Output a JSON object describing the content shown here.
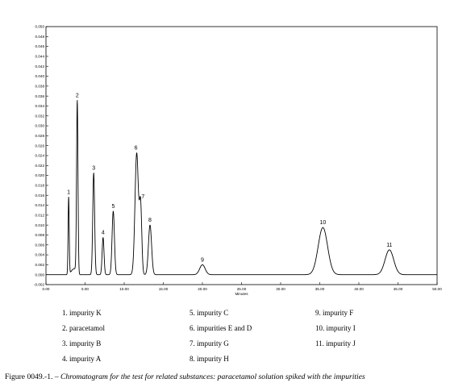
{
  "chart_data": {
    "type": "line",
    "title": "",
    "xlabel": "Minutes",
    "ylabel": "",
    "xlim": [
      0,
      50
    ],
    "ylim": [
      -0.002,
      0.05
    ],
    "x_ticks": [
      "0.00",
      "5.00",
      "10.00",
      "15.00",
      "20.00",
      "25.00",
      "30.00",
      "35.00",
      "40.00",
      "45.00",
      "50.00"
    ],
    "y_ticks": [
      "-0.002",
      "0.000",
      "0.002",
      "0.004",
      "0.006",
      "0.008",
      "0.010",
      "0.012",
      "0.014",
      "0.016",
      "0.018",
      "0.020",
      "0.022",
      "0.024",
      "0.026",
      "0.028",
      "0.030",
      "0.032",
      "0.034",
      "0.036",
      "0.038",
      "0.040",
      "0.042",
      "0.044",
      "0.046",
      "0.048",
      "0.050"
    ],
    "grid": false,
    "series": [
      {
        "peaks": [
          {
            "label": "1",
            "rt": 2.9,
            "height": 0.0155,
            "width": 0.07
          },
          {
            "label": "2",
            "rt": 4.0,
            "height": 0.0345,
            "width": 0.09
          },
          {
            "label": "3",
            "rt": 6.1,
            "height": 0.0205,
            "width": 0.12
          },
          {
            "label": "4",
            "rt": 7.3,
            "height": 0.0075,
            "width": 0.12
          },
          {
            "label": "5",
            "rt": 8.6,
            "height": 0.0128,
            "width": 0.15
          },
          {
            "label": "6",
            "rt": 11.6,
            "height": 0.0245,
            "width": 0.22
          },
          {
            "label": "7",
            "rt": 12.1,
            "height": 0.0135,
            "width": 0.15
          },
          {
            "label": "8",
            "rt": 13.3,
            "height": 0.01,
            "width": 0.2
          },
          {
            "label": "9",
            "rt": 20.0,
            "height": 0.002,
            "width": 0.35
          },
          {
            "label": "10",
            "rt": 35.4,
            "height": 0.0095,
            "width": 0.6
          },
          {
            "label": "11",
            "rt": 43.9,
            "height": 0.005,
            "width": 0.55
          }
        ]
      }
    ]
  },
  "legend": {
    "items": [
      "1. impurity K",
      "2. paracetamol",
      "3. impurity B",
      "4. impurity A",
      "5. impurity C",
      "6. impurities E and D",
      "7. impurity G",
      "8. impurity H",
      "9. impurity F",
      "10. impurity I",
      "11. impurity J"
    ]
  },
  "caption": {
    "prefix": "Figure 0049.-1. – ",
    "text": "Chromatogram for the test for related substances: paracetamol solution spiked with the impurities"
  }
}
